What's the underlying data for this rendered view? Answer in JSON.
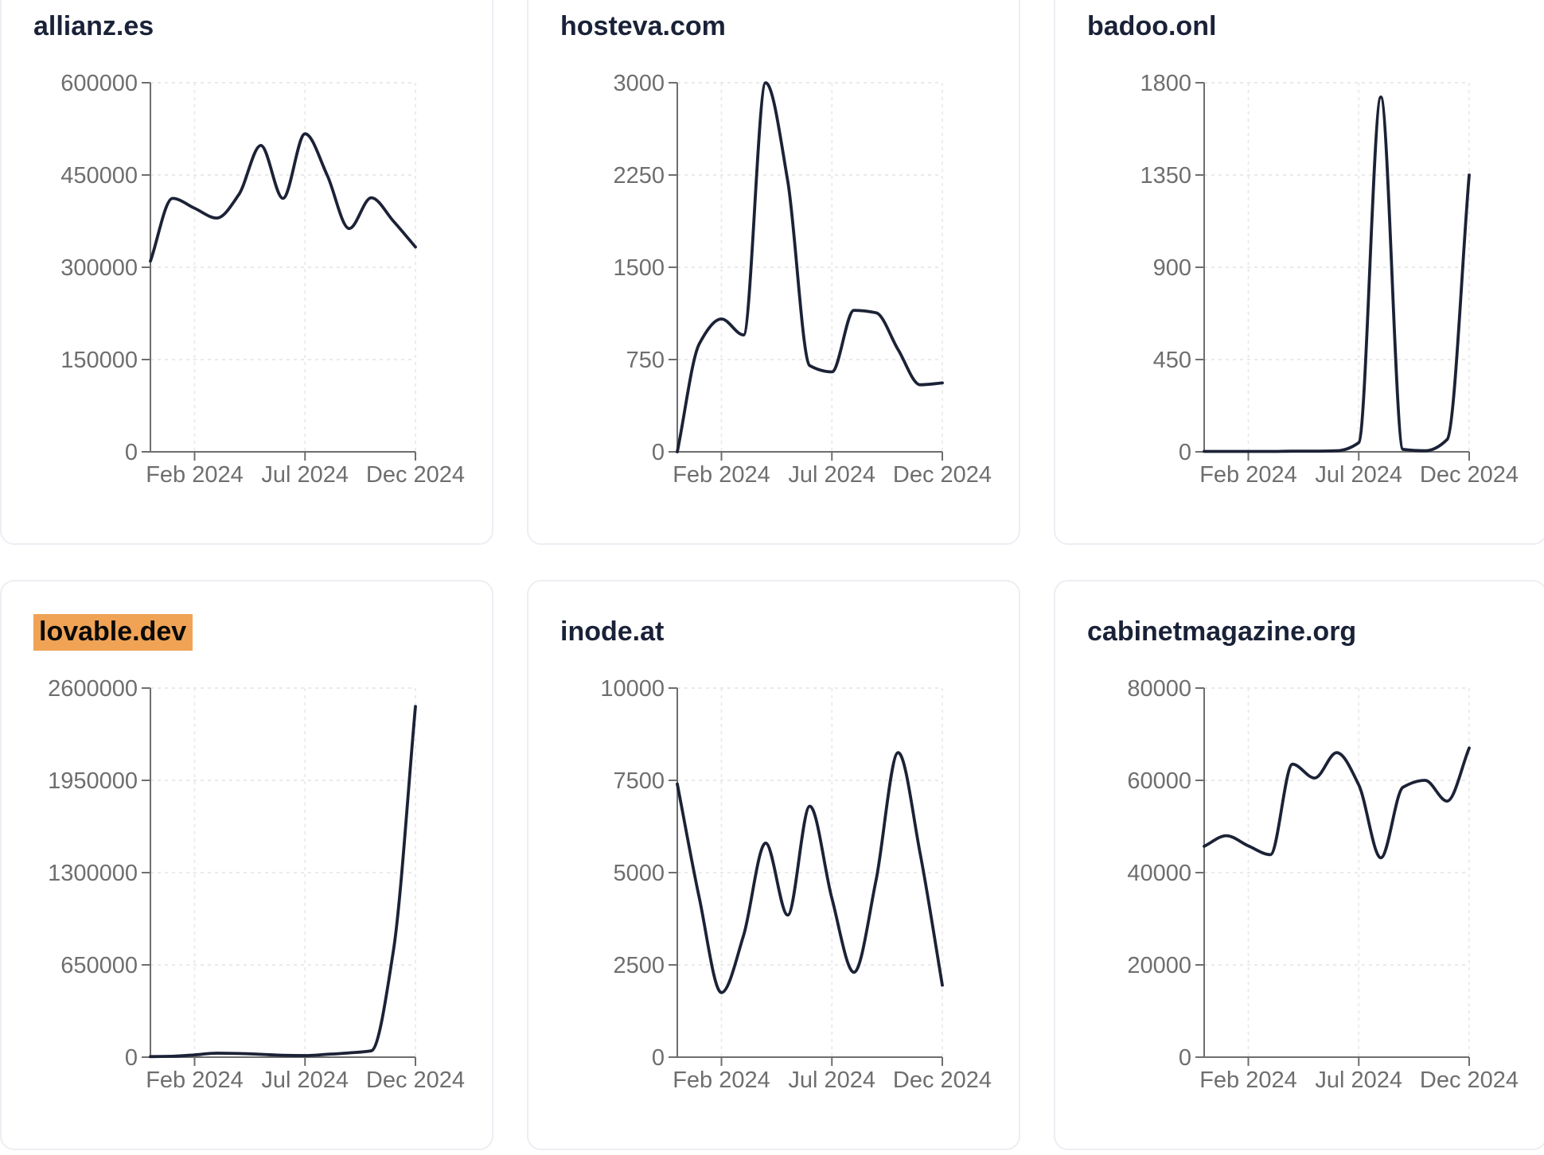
{
  "style": {
    "line_color": "#1c2236",
    "title_color": "#1a2238",
    "highlight_color": "#f0a355",
    "axis_color": "#6e6e6e",
    "tick_label_color": "#6e6e6e",
    "grid_color": "#e8e8e8",
    "card_border_color": "#eceef3",
    "background": "#ffffff"
  },
  "chart_data": [
    {
      "type": "line",
      "title": "allianz.es",
      "highlighted": false,
      "x": [
        "Dec 2023",
        "Jan 2024",
        "Feb 2024",
        "Mar 2024",
        "Apr 2024",
        "May 2024",
        "Jun 2024",
        "Jul 2024",
        "Aug 2024",
        "Sep 2024",
        "Oct 2024",
        "Nov 2024",
        "Dec 2024"
      ],
      "values": [
        310000,
        412000,
        396000,
        380000,
        418000,
        498000,
        412000,
        517000,
        450000,
        363000,
        413000,
        375000,
        333000
      ],
      "ylim": [
        0,
        600000
      ],
      "yticks": [
        0,
        150000,
        300000,
        450000,
        600000
      ],
      "xtick_labels": [
        "Feb 2024",
        "Jul 2024",
        "Dec 2024"
      ],
      "xtick_index": [
        2,
        7,
        12
      ],
      "grid": "dashed",
      "legend": "none"
    },
    {
      "type": "line",
      "title": "hosteva.com",
      "highlighted": false,
      "x": [
        "Dec 2023",
        "Jan 2024",
        "Feb 2024",
        "Mar 2024",
        "Apr 2024",
        "May 2024",
        "Jun 2024",
        "Jul 2024",
        "Aug 2024",
        "Sep 2024",
        "Oct 2024",
        "Nov 2024",
        "Dec 2024"
      ],
      "values": [
        0,
        880,
        1080,
        950,
        3000,
        2200,
        700,
        650,
        1150,
        1130,
        830,
        545,
        560
      ],
      "ylim": [
        0,
        3000
      ],
      "yticks": [
        0,
        750,
        1500,
        2250,
        3000
      ],
      "xtick_labels": [
        "Feb 2024",
        "Jul 2024",
        "Dec 2024"
      ],
      "xtick_index": [
        2,
        7,
        12
      ],
      "grid": "dashed",
      "legend": "none"
    },
    {
      "type": "line",
      "title": "badoo.onl",
      "highlighted": false,
      "x": [
        "Dec 2023",
        "Jan 2024",
        "Feb 2024",
        "Mar 2024",
        "Apr 2024",
        "May 2024",
        "Jun 2024",
        "Jul 2024",
        "Aug 2024",
        "Sep 2024",
        "Oct 2024",
        "Nov 2024",
        "Dec 2024"
      ],
      "values": [
        2,
        2,
        2,
        2,
        3,
        3,
        5,
        45,
        1730,
        12,
        5,
        60,
        1350
      ],
      "ylim": [
        0,
        1800
      ],
      "yticks": [
        0,
        450,
        900,
        1350,
        1800
      ],
      "xtick_labels": [
        "Feb 2024",
        "Jul 2024",
        "Dec 2024"
      ],
      "xtick_index": [
        2,
        7,
        12
      ],
      "grid": "dashed",
      "legend": "none"
    },
    {
      "type": "line",
      "title": "lovable.dev",
      "highlighted": true,
      "x": [
        "Dec 2023",
        "Jan 2024",
        "Feb 2024",
        "Mar 2024",
        "Apr 2024",
        "May 2024",
        "Jun 2024",
        "Jul 2024",
        "Aug 2024",
        "Sep 2024",
        "Oct 2024",
        "Nov 2024",
        "Dec 2024"
      ],
      "values": [
        4000,
        6000,
        16000,
        28000,
        26000,
        20000,
        13000,
        11000,
        20000,
        30000,
        45000,
        750000,
        2470000
      ],
      "ylim": [
        0,
        2600000
      ],
      "yticks": [
        0,
        650000,
        1300000,
        1950000,
        2600000
      ],
      "xtick_labels": [
        "Feb 2024",
        "Jul 2024",
        "Dec 2024"
      ],
      "xtick_index": [
        2,
        7,
        12
      ],
      "grid": "dashed",
      "legend": "none"
    },
    {
      "type": "line",
      "title": "inode.at",
      "highlighted": false,
      "x": [
        "Dec 2023",
        "Jan 2024",
        "Feb 2024",
        "Mar 2024",
        "Apr 2024",
        "May 2024",
        "Jun 2024",
        "Jul 2024",
        "Aug 2024",
        "Sep 2024",
        "Oct 2024",
        "Nov 2024",
        "Dec 2024"
      ],
      "values": [
        7400,
        4300,
        1750,
        3300,
        5800,
        3850,
        6800,
        4300,
        2300,
        4800,
        8250,
        5500,
        1950
      ],
      "ylim": [
        0,
        10000
      ],
      "yticks": [
        0,
        2500,
        5000,
        7500,
        10000
      ],
      "xtick_labels": [
        "Feb 2024",
        "Jul 2024",
        "Dec 2024"
      ],
      "xtick_index": [
        2,
        7,
        12
      ],
      "grid": "dashed",
      "legend": "none"
    },
    {
      "type": "line",
      "title": "cabinetmagazine.org",
      "highlighted": false,
      "x": [
        "Dec 2023",
        "Jan 2024",
        "Feb 2024",
        "Mar 2024",
        "Apr 2024",
        "May 2024",
        "Jun 2024",
        "Jul 2024",
        "Aug 2024",
        "Sep 2024",
        "Oct 2024",
        "Nov 2024",
        "Dec 2024"
      ],
      "values": [
        45700,
        48000,
        45800,
        43900,
        63500,
        60500,
        66000,
        59000,
        43200,
        58500,
        60000,
        55500,
        67000
      ],
      "ylim": [
        0,
        80000
      ],
      "yticks": [
        0,
        20000,
        40000,
        60000,
        80000
      ],
      "xtick_labels": [
        "Feb 2024",
        "Jul 2024",
        "Dec 2024"
      ],
      "xtick_index": [
        2,
        7,
        12
      ],
      "grid": "dashed",
      "legend": "none"
    }
  ]
}
